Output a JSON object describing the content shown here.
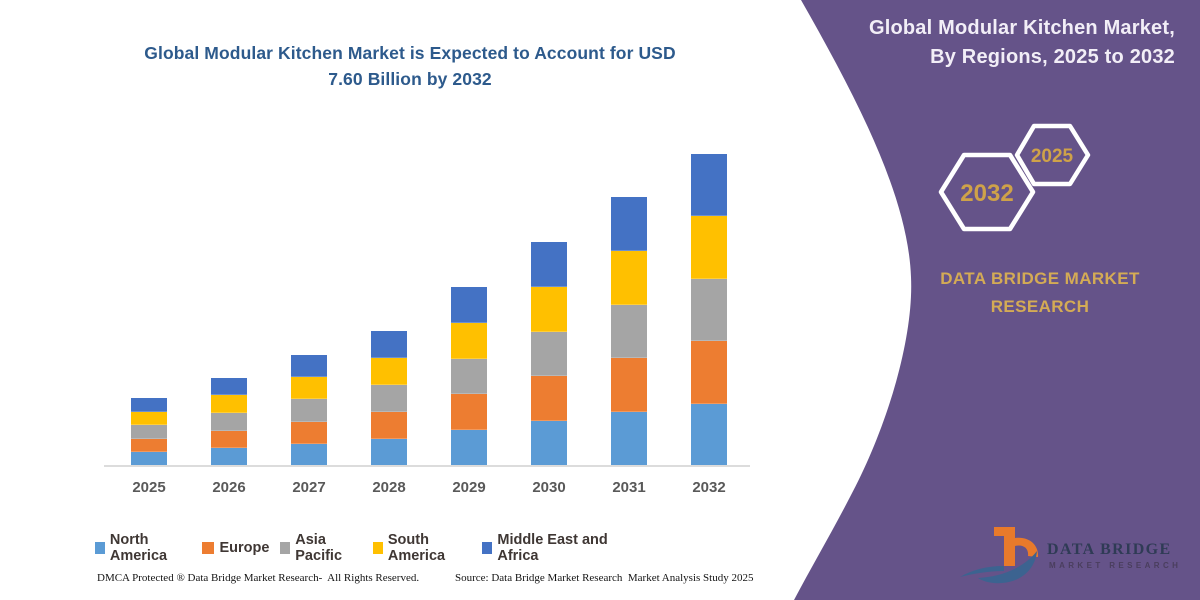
{
  "chart": {
    "title": "Global Modular Kitchen Market is Expected to Account for USD 7.60 Billion by 2032"
  },
  "chart_data": {
    "type": "bar",
    "stacked": true,
    "title": "Global Modular Kitchen Market is Expected to Account for USD 7.60 Billion by 2032",
    "units": "USD Billion",
    "categories": [
      "2025",
      "2026",
      "2027",
      "2028",
      "2029",
      "2030",
      "2031",
      "2032"
    ],
    "series": [
      {
        "name": "North America",
        "color": "#5B9BD5",
        "values": [
          0.33,
          0.43,
          0.54,
          0.66,
          0.87,
          1.09,
          1.31,
          1.52
        ]
      },
      {
        "name": "Europe",
        "color": "#ED7D31",
        "values": [
          0.33,
          0.43,
          0.54,
          0.66,
          0.87,
          1.09,
          1.31,
          1.52
        ]
      },
      {
        "name": "Asia Pacific",
        "color": "#A5A5A5",
        "values": [
          0.33,
          0.43,
          0.54,
          0.66,
          0.87,
          1.09,
          1.31,
          1.52
        ]
      },
      {
        "name": "South America",
        "color": "#FFC000",
        "values": [
          0.33,
          0.43,
          0.54,
          0.66,
          0.87,
          1.09,
          1.31,
          1.52
        ]
      },
      {
        "name": "Middle East and Africa",
        "color": "#4472C4",
        "values": [
          0.33,
          0.43,
          0.54,
          0.66,
          0.87,
          1.09,
          1.31,
          1.52
        ]
      }
    ],
    "totals": [
      1.65,
      2.15,
      2.7,
      3.3,
      4.35,
      5.45,
      6.55,
      7.6
    ],
    "ylim": [
      0,
      8.2
    ],
    "grid": false,
    "y_axis_visible": false,
    "legend_position": "bottom",
    "precision_note": "segment values estimated from bar heights; 2032 total of 7.60 stated in title"
  },
  "panel": {
    "title": "Global Modular Kitchen Market, By Regions, 2025 to 2032",
    "hexagons": [
      "2032",
      "2025"
    ],
    "brand": "DATA BRIDGE MARKET RESEARCH",
    "colors": {
      "background": "#655389",
      "accent_gold": "#CFA249",
      "title_text": "#F2EEF7"
    }
  },
  "logo": {
    "line1": "DATA BRIDGE",
    "line2": "MARKET RESEARCH"
  },
  "footer": {
    "left": "DMCA Protected ® Data Bridge Market Research-  All Rights Reserved.",
    "source": "Source: Data Bridge Market Research  Market Analysis Study 2025"
  }
}
